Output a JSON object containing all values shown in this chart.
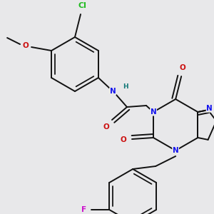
{
  "bg_color": "#e8e8ea",
  "bond_color": "#111111",
  "bond_lw": 1.4,
  "dbl_off": 0.07,
  "colors": {
    "N": "#1515ee",
    "O": "#cc1111",
    "Cl": "#22bb22",
    "F": "#cc11cc",
    "H": "#117777",
    "C": "#111111"
  },
  "figsize": [
    3.0,
    3.0
  ],
  "dpi": 100
}
